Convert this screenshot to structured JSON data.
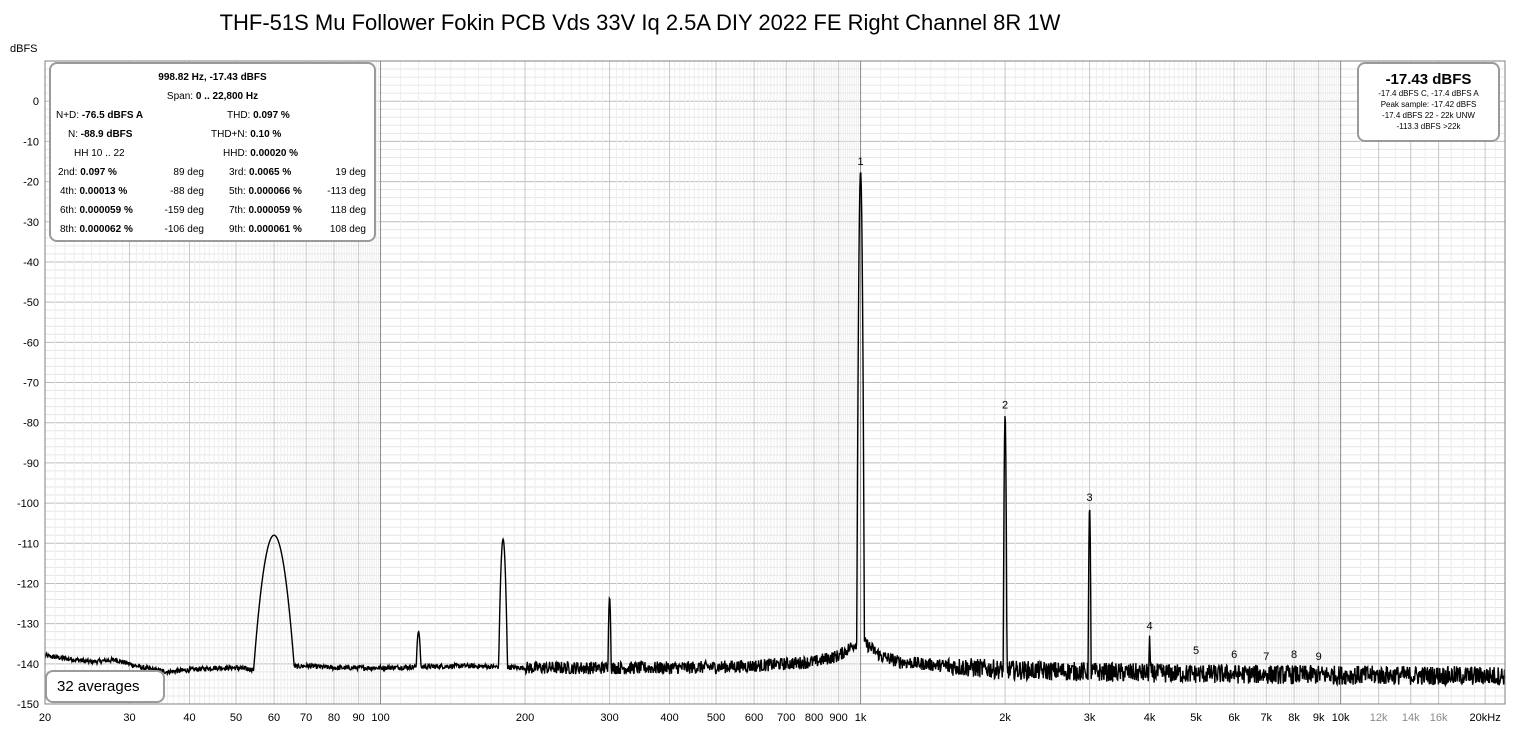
{
  "title": "THF-51S Mu Follower Fokin PCB Vds 33V Iq 2.5A DIY 2022 FE Right Channel 8R 1W",
  "chart_data": {
    "type": "line",
    "title": "THF-51S Mu Follower Fokin PCB Vds 33V Iq 2.5A DIY 2022 FE Right Channel 8R 1W",
    "ylabel": "dBFS",
    "xlabel": "",
    "x_scale": "log",
    "xlim": [
      20,
      22000
    ],
    "ylim": [
      -150,
      10
    ],
    "grid": true,
    "y_ticks": [
      0,
      -10,
      -20,
      -30,
      -40,
      -50,
      -60,
      -70,
      -80,
      -90,
      -100,
      -110,
      -120,
      -130,
      -140,
      -150
    ],
    "x_ticks": [
      {
        "value": 20,
        "label": "20"
      },
      {
        "value": 30,
        "label": "30"
      },
      {
        "value": 40,
        "label": "40"
      },
      {
        "value": 50,
        "label": "50"
      },
      {
        "value": 60,
        "label": "60"
      },
      {
        "value": 70,
        "label": "70"
      },
      {
        "value": 80,
        "label": "80"
      },
      {
        "value": 90,
        "label": "90"
      },
      {
        "value": 100,
        "label": "100"
      },
      {
        "value": 200,
        "label": "200"
      },
      {
        "value": 300,
        "label": "300"
      },
      {
        "value": 400,
        "label": "400"
      },
      {
        "value": 500,
        "label": "500"
      },
      {
        "value": 600,
        "label": "600"
      },
      {
        "value": 700,
        "label": "700"
      },
      {
        "value": 800,
        "label": "800"
      },
      {
        "value": 900,
        "label": "900"
      },
      {
        "value": 1000,
        "label": "1k"
      },
      {
        "value": 2000,
        "label": "2k"
      },
      {
        "value": 3000,
        "label": "3k"
      },
      {
        "value": 4000,
        "label": "4k"
      },
      {
        "value": 5000,
        "label": "5k"
      },
      {
        "value": 6000,
        "label": "6k"
      },
      {
        "value": 7000,
        "label": "7k"
      },
      {
        "value": 8000,
        "label": "8k"
      },
      {
        "value": 9000,
        "label": "9k"
      },
      {
        "value": 10000,
        "label": "10k"
      },
      {
        "value": 12000,
        "label": "12k",
        "dim": true
      },
      {
        "value": 14000,
        "label": "14k",
        "dim": true
      },
      {
        "value": 16000,
        "label": "16k",
        "dim": true
      },
      {
        "value": 20000,
        "label": "20kHz"
      }
    ],
    "noise_floor": [
      [
        20,
        -138
      ],
      [
        25,
        -139.5
      ],
      [
        28,
        -139
      ],
      [
        32,
        -141
      ],
      [
        36,
        -142
      ],
      [
        40,
        -141.5
      ],
      [
        45,
        -141
      ],
      [
        50,
        -141
      ],
      [
        55,
        -141.5
      ],
      [
        70,
        -140.5
      ],
      [
        80,
        -141
      ],
      [
        100,
        -141
      ],
      [
        150,
        -140.5
      ],
      [
        200,
        -141
      ],
      [
        300,
        -141
      ],
      [
        400,
        -141
      ],
      [
        500,
        -140.8
      ],
      [
        600,
        -140.5
      ],
      [
        700,
        -140
      ],
      [
        800,
        -139.5
      ],
      [
        900,
        -138
      ],
      [
        950,
        -136
      ],
      [
        1000,
        -134
      ],
      [
        1050,
        -136
      ],
      [
        1100,
        -138
      ],
      [
        1200,
        -139.5
      ],
      [
        1500,
        -140.5
      ],
      [
        2000,
        -141.5
      ],
      [
        3000,
        -142
      ],
      [
        5000,
        -142.5
      ],
      [
        10000,
        -142.8
      ],
      [
        22000,
        -143
      ]
    ],
    "peaks": [
      {
        "freq": 60,
        "level": -108,
        "width": 0.018
      },
      {
        "freq": 120,
        "level": -132,
        "width": 0.004
      },
      {
        "freq": 180,
        "level": -109,
        "width": 0.004
      },
      {
        "freq": 300,
        "level": -123.5,
        "width": 0.002
      },
      {
        "freq": 1000,
        "level": -17.43,
        "width": 0.0018
      },
      {
        "freq": 2000,
        "level": -78,
        "width": 0.0012
      },
      {
        "freq": 3000,
        "level": -101,
        "width": 0.0012
      },
      {
        "freq": 4000,
        "level": -133,
        "width": 0.0012
      }
    ],
    "harmonic_markers": [
      {
        "label": "1",
        "freq": 1000,
        "level": -17.43
      },
      {
        "label": "2",
        "freq": 2000,
        "level": -78
      },
      {
        "label": "3",
        "freq": 3000,
        "level": -101
      },
      {
        "label": "4",
        "freq": 4000,
        "level": -133
      },
      {
        "label": "5",
        "freq": 5000,
        "level": -139
      },
      {
        "label": "6",
        "freq": 6000,
        "level": -140
      },
      {
        "label": "7",
        "freq": 7000,
        "level": -140.5
      },
      {
        "label": "8",
        "freq": 8000,
        "level": -140
      },
      {
        "label": "9",
        "freq": 9000,
        "level": -140.5
      }
    ],
    "line_color": "#000000"
  },
  "stats": {
    "line1": "998.82 Hz, -17.43 dBFS",
    "line2_label": "Span:",
    "line2_value": "0 .. 22,800 Hz",
    "nd_label": "N+D:",
    "nd_value": "-76.5 dBFS A",
    "thd_label": "THD:",
    "thd_value": "0.097 %",
    "n_label": "N:",
    "n_value": "-88.9 dBFS",
    "thdn_label": "THD+N:",
    "thdn_value": "0.10 %",
    "hh_label": "HH 10 .. 22",
    "hhd_label": "HHD:",
    "hhd_value": "0.00020 %",
    "harmonics": [
      {
        "label": "2nd:",
        "value": "0.097 %",
        "deg": "89 deg"
      },
      {
        "label": "3rd:",
        "value": "0.0065 %",
        "deg": "19 deg"
      },
      {
        "label": "4th:",
        "value": "0.00013 %",
        "deg": "-88 deg"
      },
      {
        "label": "5th:",
        "value": "0.000066 %",
        "deg": "-113 deg"
      },
      {
        "label": "6th:",
        "value": "0.000059 %",
        "deg": "-159 deg"
      },
      {
        "label": "7th:",
        "value": "0.000059 %",
        "deg": "118 deg"
      },
      {
        "label": "8th:",
        "value": "0.000062 %",
        "deg": "-106 deg"
      },
      {
        "label": "9th:",
        "value": "0.000061 %",
        "deg": "108 deg"
      }
    ]
  },
  "level": {
    "main": "-17.43 dBFS",
    "lines": [
      "-17.4 dBFS C, -17.4 dBFS A",
      "Peak sample: -17.42 dBFS",
      "-17.4 dBFS 22 - 22k UNW",
      "-113.3 dBFS >22k"
    ]
  },
  "averages": "32 averages"
}
